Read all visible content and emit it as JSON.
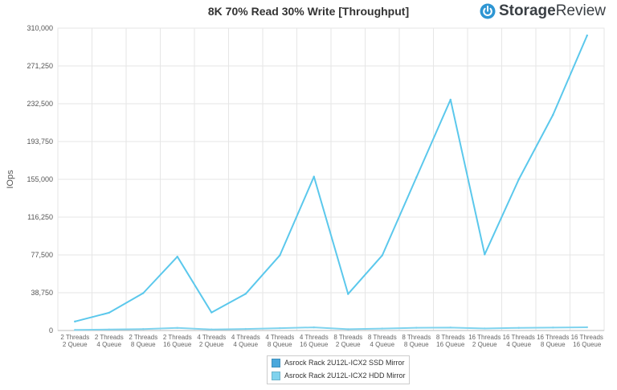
{
  "chart_data": {
    "type": "line",
    "title": "8K 70% Read 30% Write [Throughput]",
    "ylabel": "IOps",
    "xlabel": "",
    "ylim": [
      0,
      310000
    ],
    "yticks": [
      "0",
      "38,750",
      "77,500",
      "116,250",
      "155,000",
      "193,750",
      "232,500",
      "271,250",
      "310,000"
    ],
    "ytick_values": [
      0,
      38750,
      77500,
      116250,
      155000,
      193750,
      232500,
      271250,
      310000
    ],
    "categories": [
      [
        "2 Threads",
        "2 Queue"
      ],
      [
        "2 Threads",
        "4 Queue"
      ],
      [
        "2 Threads",
        "8 Queue"
      ],
      [
        "2 Threads",
        "16 Queue"
      ],
      [
        "4 Threads",
        "2 Queue"
      ],
      [
        "4 Threads",
        "4 Queue"
      ],
      [
        "4 Threads",
        "8 Queue"
      ],
      [
        "4 Threads",
        "16 Queue"
      ],
      [
        "8 Threads",
        "2 Queue"
      ],
      [
        "8 Threads",
        "4 Queue"
      ],
      [
        "8 Threads",
        "8 Queue"
      ],
      [
        "8 Threads",
        "16 Queue"
      ],
      [
        "16 Threads",
        "2 Queue"
      ],
      [
        "16 Threads",
        "4 Queue"
      ],
      [
        "16 Threads",
        "8 Queue"
      ],
      [
        "16 Threads",
        "16 Queue"
      ]
    ],
    "series": [
      {
        "name": "Asrock Rack 2U12L-ICX2 SSD Mirror",
        "color": "#5bc8ec",
        "values": [
          9200,
          18200,
          38300,
          75700,
          18500,
          37600,
          77000,
          157700,
          37400,
          77000,
          157000,
          236700,
          78000,
          155000,
          221000,
          302500
        ]
      },
      {
        "name": "Asrock Rack 2U12L-ICX2 HDD Mirror",
        "color": "#7fd3ee",
        "values": [
          600,
          1000,
          1500,
          2600,
          1100,
          1600,
          2400,
          3200,
          1300,
          2000,
          2800,
          3000,
          2100,
          2700,
          3000,
          3300
        ]
      }
    ],
    "legend_swatches": [
      "#4aa8dc",
      "#7fd3ee"
    ],
    "grid": true,
    "legend_position": "bottom"
  },
  "brand": {
    "name_part1": "Storage",
    "name_part2": "Review",
    "logo_icon": "power-icon",
    "accent": "#2e96d3"
  },
  "legend": [
    {
      "label": "Asrock Rack 2U12L-ICX2 SSD Mirror"
    },
    {
      "label": "Asrock Rack 2U12L-ICX2 HDD Mirror"
    }
  ]
}
